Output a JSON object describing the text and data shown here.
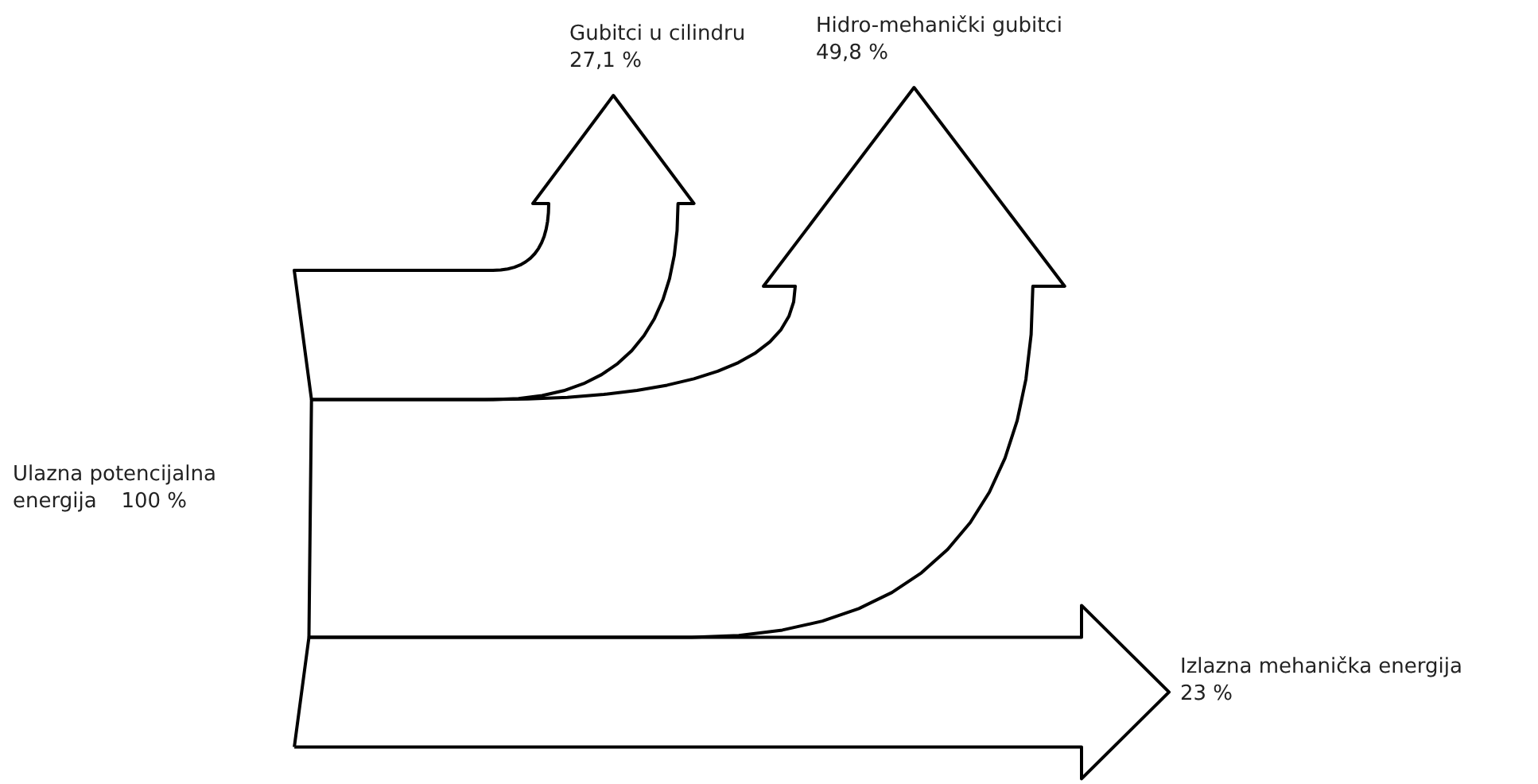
{
  "chart_data": {
    "type": "other",
    "categories": [
      "Ulazna potencijalna energija",
      "Gubitci u cilindru",
      "Hidro-mehanički gubitci",
      "Izlazna mehanička energija"
    ],
    "values": [
      100,
      27.1,
      49.8,
      23
    ],
    "value_labels": [
      "100 %",
      "27,1 %",
      "49,8 %",
      "23 %"
    ]
  }
}
